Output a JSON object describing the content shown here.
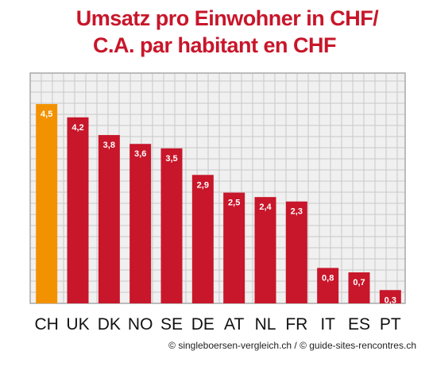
{
  "header": {
    "title_line1": "Umsatz pro Einwohner in CHF/",
    "title_line2": "C.A. par habitant en CHF"
  },
  "footer": {
    "credit": "© singleboersen-vergleich.ch / © guide-sites-rencontres.ch"
  },
  "chart_data": {
    "type": "bar",
    "title": "Umsatz pro Einwohner in CHF/ C.A. par habitant en CHF",
    "categories": [
      "CH",
      "UK",
      "DK",
      "NO",
      "SE",
      "DE",
      "AT",
      "NL",
      "FR",
      "IT",
      "ES",
      "PT"
    ],
    "values": [
      4.5,
      4.2,
      3.8,
      3.6,
      3.5,
      2.9,
      2.5,
      2.4,
      2.3,
      0.8,
      0.7,
      0.3
    ],
    "value_labels": [
      "4,5",
      "4,2",
      "3,8",
      "3,6",
      "3,5",
      "2,9",
      "2,5",
      "2,4",
      "2,3",
      "0,8",
      "0,7",
      "0,3"
    ],
    "xlabel": "",
    "ylabel": "",
    "ylim": [
      0,
      5.2
    ],
    "grid": true,
    "colors": {
      "highlight": "#f39200",
      "bar": "#c8162a",
      "grid": "#c8c8c8",
      "plot_bg": "#f0f0f0",
      "frame": "#a8a8a8"
    },
    "highlight_index": 0
  }
}
